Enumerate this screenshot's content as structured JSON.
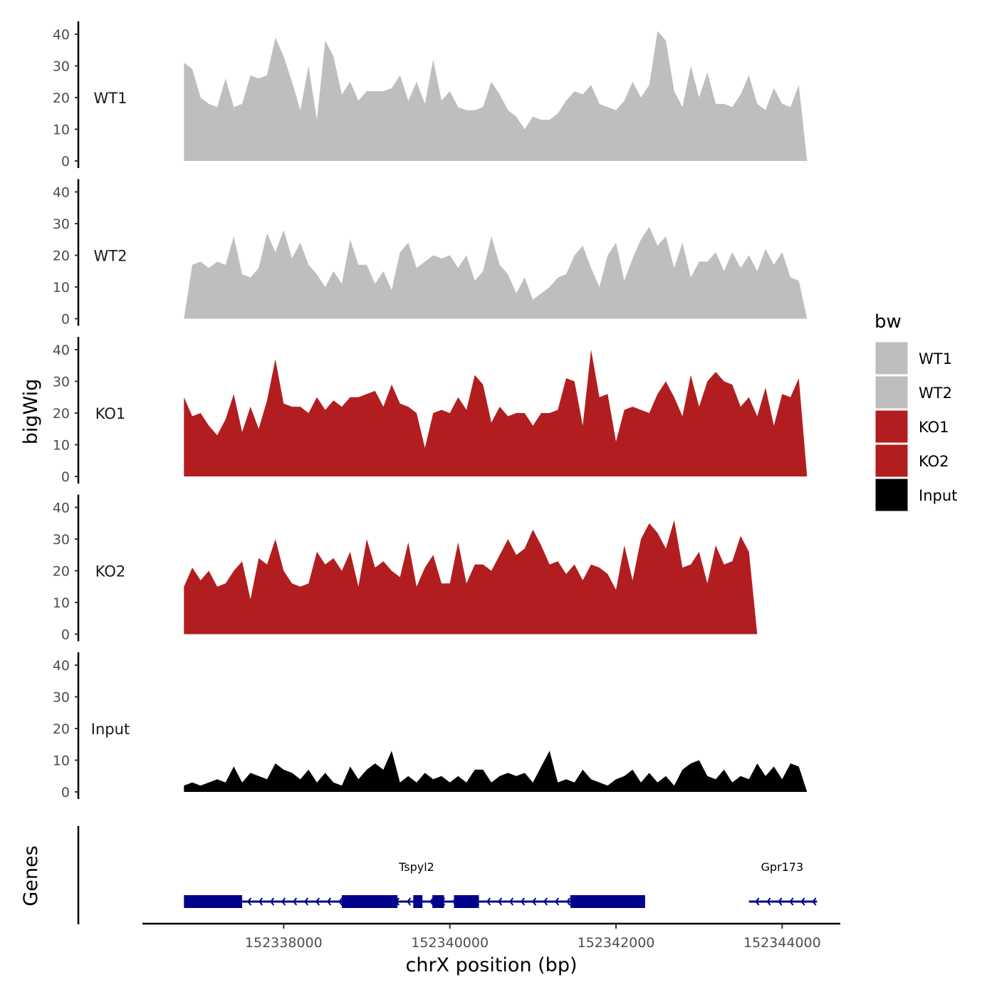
{
  "chart_data": {
    "type": "area",
    "title": "",
    "xlabel": "chrX position (bp)",
    "ylabel": "bigWig",
    "genes_label": "Genes",
    "xlim": [
      152336300,
      152344700
    ],
    "x_ticks": [
      152338000,
      152340000,
      152342000,
      152344000
    ],
    "x_tick_labels": [
      "152338000",
      "152340000",
      "152342000",
      "152344000"
    ],
    "ylim": [
      0,
      42
    ],
    "y_ticks": [
      0,
      10,
      20,
      30,
      40
    ],
    "y_tick_labels": [
      "0",
      "10",
      "20",
      "30",
      "40"
    ],
    "legend": {
      "title": "bw",
      "position": "right",
      "entries": [
        {
          "label": "WT1",
          "color": "#bebebe"
        },
        {
          "label": "WT2",
          "color": "#bebebe"
        },
        {
          "label": "KO1",
          "color": "#b21e20"
        },
        {
          "label": "KO2",
          "color": "#b21e20"
        },
        {
          "label": "Input",
          "color": "#000000"
        }
      ]
    },
    "series": [
      {
        "name": "WT1",
        "color": "#bebebe",
        "x": [
          152336800,
          152336900,
          152337000,
          152337100,
          152337200,
          152337300,
          152337400,
          152337500,
          152337600,
          152337700,
          152337800,
          152337900,
          152338000,
          152338100,
          152338200,
          152338300,
          152338400,
          152338500,
          152338600,
          152338700,
          152338800,
          152338900,
          152339000,
          152339100,
          152339200,
          152339300,
          152339400,
          152339500,
          152339600,
          152339700,
          152339800,
          152339900,
          152340000,
          152340100,
          152340200,
          152340300,
          152340400,
          152340500,
          152340600,
          152340700,
          152340800,
          152340900,
          152341000,
          152341100,
          152341200,
          152341300,
          152341400,
          152341500,
          152341600,
          152341700,
          152341800,
          152341900,
          152342000,
          152342100,
          152342200,
          152342300,
          152342400,
          152342500,
          152342600,
          152342700,
          152342800,
          152342900,
          152343000,
          152343100,
          152343200,
          152343300,
          152343400,
          152343500,
          152343600,
          152343700,
          152343800,
          152343900,
          152344000,
          152344100,
          152344200,
          152344300
        ],
        "values": [
          31,
          29,
          20,
          18,
          17,
          26,
          17,
          18,
          27,
          26,
          27,
          39,
          33,
          25,
          16,
          30,
          13,
          38,
          33,
          21,
          25,
          19,
          22,
          22,
          22,
          23,
          27,
          19,
          25,
          18,
          32,
          19,
          22,
          17,
          16,
          16,
          17,
          25,
          21,
          16,
          14,
          10,
          14,
          13,
          13,
          15,
          19,
          22,
          21,
          24,
          18,
          17,
          16,
          19,
          25,
          20,
          24,
          41,
          38,
          22,
          17,
          30,
          20,
          28,
          18,
          18,
          17,
          21,
          27,
          18,
          16,
          23,
          18,
          17,
          24,
          0
        ]
      },
      {
        "name": "WT2",
        "color": "#bebebe",
        "x": [
          152336800,
          152336900,
          152337000,
          152337100,
          152337200,
          152337300,
          152337400,
          152337500,
          152337600,
          152337700,
          152337800,
          152337900,
          152338000,
          152338100,
          152338200,
          152338300,
          152338400,
          152338500,
          152338600,
          152338700,
          152338800,
          152338900,
          152339000,
          152339100,
          152339200,
          152339300,
          152339400,
          152339500,
          152339600,
          152339700,
          152339800,
          152339900,
          152340000,
          152340100,
          152340200,
          152340300,
          152340400,
          152340500,
          152340600,
          152340700,
          152340800,
          152340900,
          152341000,
          152341100,
          152341200,
          152341300,
          152341400,
          152341500,
          152341600,
          152341700,
          152341800,
          152341900,
          152342000,
          152342100,
          152342200,
          152342300,
          152342400,
          152342500,
          152342600,
          152342700,
          152342800,
          152342900,
          152343000,
          152343100,
          152343200,
          152343300,
          152343400,
          152343500,
          152343600,
          152343700,
          152343800,
          152343900,
          152344000,
          152344100,
          152344200,
          152344300
        ],
        "values": [
          0,
          17,
          18,
          16,
          18,
          17,
          26,
          14,
          13,
          16,
          27,
          21,
          28,
          19,
          24,
          17,
          14,
          10,
          15,
          11,
          25,
          17,
          17,
          11,
          15,
          9,
          21,
          24,
          16,
          18,
          20,
          19,
          20,
          16,
          20,
          12,
          15,
          26,
          17,
          14,
          8,
          13,
          6,
          8,
          10,
          13,
          14,
          20,
          23,
          16,
          10,
          20,
          24,
          12,
          19,
          25,
          29,
          23,
          26,
          16,
          24,
          13,
          18,
          18,
          21,
          15,
          21,
          16,
          20,
          15,
          22,
          17,
          21,
          13,
          12,
          0
        ]
      },
      {
        "name": "KO1",
        "color": "#b21e20",
        "x": [
          152336800,
          152336900,
          152337000,
          152337100,
          152337200,
          152337300,
          152337400,
          152337500,
          152337600,
          152337700,
          152337800,
          152337900,
          152338000,
          152338100,
          152338200,
          152338300,
          152338400,
          152338500,
          152338600,
          152338700,
          152338800,
          152338900,
          152339000,
          152339100,
          152339200,
          152339300,
          152339400,
          152339500,
          152339600,
          152339700,
          152339800,
          152339900,
          152340000,
          152340100,
          152340200,
          152340300,
          152340400,
          152340500,
          152340600,
          152340700,
          152340800,
          152340900,
          152341000,
          152341100,
          152341200,
          152341300,
          152341400,
          152341500,
          152341600,
          152341700,
          152341800,
          152341900,
          152342000,
          152342100,
          152342200,
          152342300,
          152342400,
          152342500,
          152342600,
          152342700,
          152342800,
          152342900,
          152343000,
          152343100,
          152343200,
          152343300,
          152343400,
          152343500,
          152343600,
          152343700,
          152343800,
          152343900,
          152344000,
          152344100,
          152344200,
          152344300
        ],
        "values": [
          25,
          19,
          20,
          16,
          13,
          18,
          26,
          14,
          22,
          15,
          24,
          37,
          23,
          22,
          22,
          20,
          25,
          21,
          24,
          22,
          25,
          25,
          26,
          27,
          22,
          29,
          23,
          22,
          20,
          9,
          20,
          21,
          20,
          25,
          21,
          32,
          29,
          17,
          22,
          19,
          20,
          20,
          16,
          20,
          20,
          21,
          31,
          30,
          16,
          40,
          25,
          26,
          11,
          21,
          22,
          21,
          20,
          26,
          30,
          25,
          19,
          32,
          22,
          30,
          33,
          30,
          29,
          22,
          25,
          19,
          28,
          16,
          26,
          25,
          31,
          0
        ]
      },
      {
        "name": "KO2",
        "color": "#b21e20",
        "x": [
          152336800,
          152336900,
          152337000,
          152337100,
          152337200,
          152337300,
          152337400,
          152337500,
          152337600,
          152337700,
          152337800,
          152337900,
          152338000,
          152338100,
          152338200,
          152338300,
          152338400,
          152338500,
          152338600,
          152338700,
          152338800,
          152338900,
          152339000,
          152339100,
          152339200,
          152339300,
          152339400,
          152339500,
          152339600,
          152339700,
          152339800,
          152339900,
          152340000,
          152340100,
          152340200,
          152340300,
          152340400,
          152340500,
          152340600,
          152340700,
          152340800,
          152340900,
          152341000,
          152341100,
          152341200,
          152341300,
          152341400,
          152341500,
          152341600,
          152341700,
          152341800,
          152341900,
          152342000,
          152342100,
          152342200,
          152342300,
          152342400,
          152342500,
          152342600,
          152342700,
          152342800,
          152342900,
          152343000,
          152343100,
          152343200,
          152343300,
          152343400,
          152343500,
          152343600,
          152343700,
          152343800,
          152343900,
          152344000,
          152344100,
          152344200,
          152344300
        ],
        "values": [
          15,
          21,
          17,
          20,
          15,
          16,
          20,
          23,
          11,
          24,
          22,
          30,
          20,
          16,
          15,
          16,
          26,
          22,
          24,
          20,
          26,
          15,
          30,
          21,
          23,
          20,
          18,
          29,
          15,
          21,
          25,
          16,
          16,
          29,
          16,
          22,
          22,
          20,
          25,
          30,
          25,
          27,
          33,
          28,
          22,
          23,
          19,
          22,
          17,
          22,
          21,
          19,
          14,
          28,
          17,
          30,
          35,
          32,
          27,
          36,
          21,
          22,
          26,
          16,
          28,
          22,
          23,
          31,
          26,
          0,
          0,
          0,
          0,
          0,
          0,
          0
        ]
      },
      {
        "name": "Input",
        "color": "#000000",
        "x": [
          152336800,
          152336900,
          152337000,
          152337100,
          152337200,
          152337300,
          152337400,
          152337500,
          152337600,
          152337700,
          152337800,
          152337900,
          152338000,
          152338100,
          152338200,
          152338300,
          152338400,
          152338500,
          152338600,
          152338700,
          152338800,
          152338900,
          152339000,
          152339100,
          152339200,
          152339300,
          152339400,
          152339500,
          152339600,
          152339700,
          152339800,
          152339900,
          152340000,
          152340100,
          152340200,
          152340300,
          152340400,
          152340500,
          152340600,
          152340700,
          152340800,
          152340900,
          152341000,
          152341100,
          152341200,
          152341300,
          152341400,
          152341500,
          152341600,
          152341700,
          152341800,
          152341900,
          152342000,
          152342100,
          152342200,
          152342300,
          152342400,
          152342500,
          152342600,
          152342700,
          152342800,
          152342900,
          152343000,
          152343100,
          152343200,
          152343300,
          152343400,
          152343500,
          152343600,
          152343700,
          152343800,
          152343900,
          152344000,
          152344100,
          152344200,
          152344300
        ],
        "values": [
          2,
          3,
          2,
          3,
          4,
          3,
          8,
          3,
          6,
          5,
          4,
          9,
          7,
          6,
          4,
          7,
          3,
          6,
          3,
          2,
          8,
          4,
          7,
          9,
          7,
          13,
          3,
          5,
          3,
          6,
          4,
          5,
          3,
          5,
          3,
          7,
          7,
          3,
          5,
          6,
          5,
          6,
          3,
          8,
          13,
          3,
          4,
          3,
          7,
          4,
          3,
          2,
          4,
          5,
          7,
          3,
          6,
          3,
          5,
          2,
          7,
          9,
          10,
          5,
          4,
          7,
          3,
          5,
          4,
          9,
          5,
          8,
          4,
          9,
          8,
          0
        ]
      }
    ],
    "genes": [
      {
        "name": "Tspyl2",
        "strand": "-",
        "start": 152336800,
        "end": 152342350,
        "exons": [
          [
            152336800,
            152337500
          ],
          [
            152338700,
            152339370
          ],
          [
            152339560,
            152339670
          ],
          [
            152339790,
            152339930
          ],
          [
            152340050,
            152340350
          ],
          [
            152341450,
            152342350
          ]
        ]
      },
      {
        "name": "Gpr173",
        "strand": "-",
        "start": 152343600,
        "end": 152344420,
        "exons": []
      }
    ]
  }
}
